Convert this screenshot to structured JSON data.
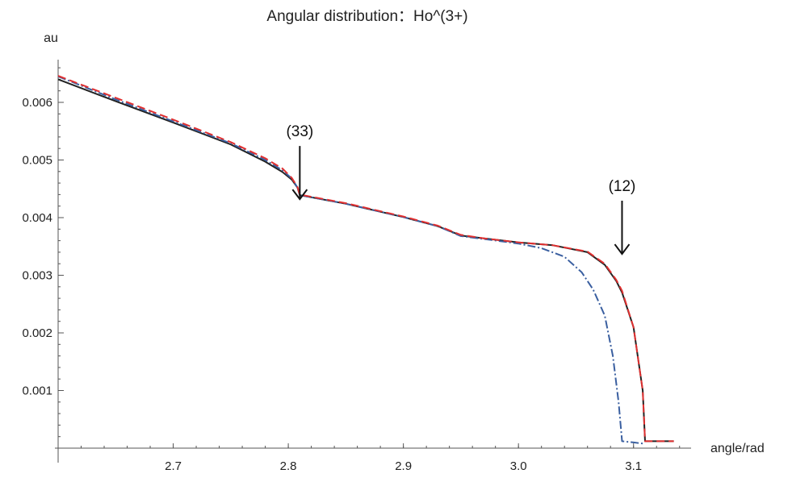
{
  "chart_data": {
    "type": "line",
    "title": "Angular distribution：Ho^(3+)",
    "xlabel": "angle/rad",
    "ylabel": "au",
    "xlim": [
      2.6,
      3.15
    ],
    "ylim": [
      0,
      0.0068
    ],
    "xticks": [
      2.7,
      2.8,
      2.9,
      3.0,
      3.1
    ],
    "xtick_labels": [
      "2.7",
      "2.8",
      "2.9",
      "3.0",
      "3.1"
    ],
    "yticks": [
      0.001,
      0.002,
      0.003,
      0.004,
      0.005,
      0.006
    ],
    "ytick_labels": [
      "0.001",
      "0.002",
      "0.003",
      "0.004",
      "0.005",
      "0.006"
    ],
    "grid": false,
    "legend": "none",
    "annotations": [
      {
        "text": "(33)",
        "x": 2.81,
        "y": 0.00052
      },
      {
        "text": "(12)",
        "x": 3.09,
        "y": 0.00035
      }
    ],
    "series": [
      {
        "color": "#222222",
        "style": "solid",
        "x": [
          2.6,
          2.65,
          2.7,
          2.75,
          2.78,
          2.795,
          2.803,
          2.808,
          2.81,
          2.85,
          2.9,
          2.93,
          2.95,
          2.97,
          3.0,
          3.03,
          3.06,
          3.075,
          3.085,
          3.09,
          3.1,
          3.108,
          3.11,
          3.135
        ],
        "y": [
          0.0064,
          0.00602,
          0.00565,
          0.00527,
          0.00497,
          0.00479,
          0.00466,
          0.00452,
          0.00439,
          0.00424,
          0.00401,
          0.00385,
          0.00369,
          0.00364,
          0.00357,
          0.00352,
          0.0034,
          0.00318,
          0.0029,
          0.0027,
          0.0021,
          0.001,
          0.00012,
          0.00012
        ]
      },
      {
        "color": "#e03030",
        "style": "dashed",
        "x": [
          2.6,
          2.65,
          2.7,
          2.75,
          2.78,
          2.795,
          2.803,
          2.808,
          2.81,
          2.85,
          2.9,
          2.93,
          2.95,
          2.97,
          3.0,
          3.03,
          3.06,
          3.075,
          3.085,
          3.09,
          3.1,
          3.108,
          3.11,
          3.135
        ],
        "y": [
          0.00646,
          0.00608,
          0.0057,
          0.00531,
          0.00503,
          0.00485,
          0.00469,
          0.00453,
          0.0044,
          0.00425,
          0.00402,
          0.00386,
          0.0037,
          0.00364,
          0.00357,
          0.00352,
          0.00341,
          0.0032,
          0.00292,
          0.00273,
          0.0021,
          0.001,
          0.00012,
          0.00012
        ]
      },
      {
        "color": "#3a5fa0",
        "style": "dashdot",
        "x": [
          2.6,
          2.65,
          2.7,
          2.75,
          2.78,
          2.795,
          2.803,
          2.808,
          2.81,
          2.85,
          2.9,
          2.93,
          2.95,
          2.97,
          3.0,
          3.02,
          3.04,
          3.055,
          3.065,
          3.075,
          3.082,
          3.087,
          3.09,
          3.1,
          3.108
        ],
        "y": [
          0.00645,
          0.00605,
          0.00567,
          0.00529,
          0.005,
          0.00482,
          0.00468,
          0.00452,
          0.00439,
          0.00424,
          0.00401,
          0.00385,
          0.00368,
          0.00363,
          0.00355,
          0.00347,
          0.00332,
          0.00305,
          0.00275,
          0.0023,
          0.0016,
          0.0008,
          0.00012,
          0.0001,
          8e-05
        ]
      }
    ]
  }
}
